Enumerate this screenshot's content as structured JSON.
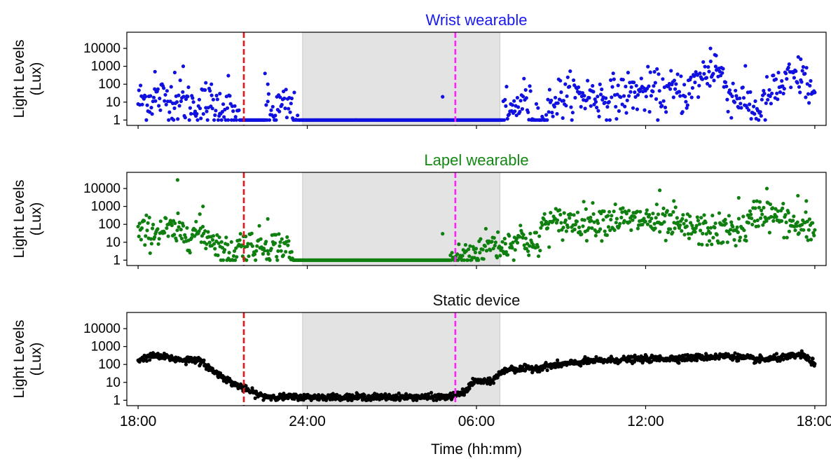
{
  "chart_data": {
    "type": "scatter",
    "xlabel": "Time (hh:mm)",
    "x_ticks": [
      "18:00",
      "24:00",
      "06:00",
      "12:00",
      "18:00"
    ],
    "x_tick_hours": [
      0,
      6,
      12,
      18,
      24
    ],
    "x_range_hours_from_18_00": [
      -0.4,
      24.4
    ],
    "shaded_period": {
      "start": "23:50",
      "end": "06:50",
      "color": "#e3e3e3"
    },
    "vlines": [
      {
        "time": "21:45",
        "color": "#e8151a",
        "style": "dashed"
      },
      {
        "time": "05:15",
        "color": "#ff22ff",
        "style": "dashed"
      }
    ],
    "y_scale": "log",
    "ylim": [
      0.5,
      80000
    ],
    "y_ticks": [
      1,
      10,
      100,
      1000,
      10000
    ],
    "y_tick_labels": [
      "1",
      "10",
      "100",
      "1000",
      "10000"
    ],
    "panels": [
      {
        "title": "Wrist wearable",
        "title_color": "#1a1aef",
        "ylabel_line1": "Light Levels",
        "ylabel_line2": "(Lux)",
        "point_color": "#1010e0",
        "series": {
          "profile": [
            [
              0,
              12
            ],
            [
              0.5,
              15
            ],
            [
              1,
              18
            ],
            [
              1.5,
              10
            ],
            [
              2,
              7
            ],
            [
              2.5,
              6
            ],
            [
              3,
              5
            ],
            [
              3.3,
              2.5
            ],
            [
              3.6,
              1
            ],
            [
              4.5,
              1
            ],
            [
              5,
              5
            ],
            [
              5.4,
              5
            ],
            [
              5.7,
              1
            ],
            [
              12.9,
              1
            ],
            [
              13.3,
              3
            ],
            [
              13.7,
              20
            ],
            [
              14,
              2
            ],
            [
              14.4,
              1
            ],
            [
              14.7,
              12
            ],
            [
              15,
              20
            ],
            [
              16,
              25
            ],
            [
              16.5,
              15
            ],
            [
              17,
              22
            ],
            [
              17.5,
              35
            ],
            [
              18,
              40
            ],
            [
              18.5,
              30
            ],
            [
              19,
              40
            ],
            [
              19.5,
              35
            ],
            [
              20,
              300
            ],
            [
              20.5,
              900
            ],
            [
              20.8,
              150
            ],
            [
              21,
              25
            ],
            [
              21.3,
              20
            ],
            [
              21.6,
              10
            ],
            [
              22,
              2.5
            ],
            [
              22.4,
              25
            ],
            [
              23,
              130
            ],
            [
              23.5,
              280
            ],
            [
              23.8,
              70
            ],
            [
              24,
              18
            ]
          ],
          "spread": 0.6,
          "count": 820,
          "outliers": [
            [
              0.6,
              500
            ],
            [
              1.3,
              450
            ],
            [
              1.6,
              1000
            ],
            [
              2.4,
              120
            ],
            [
              2.6,
              100
            ],
            [
              2.9,
              30
            ],
            [
              3.2,
              300
            ],
            [
              4.5,
              400
            ],
            [
              4.6,
              100
            ],
            [
              10.8,
              20
            ],
            [
              20.3,
              10000
            ],
            [
              20.5,
              4000
            ],
            [
              23.5,
              2500
            ]
          ]
        }
      },
      {
        "title": "Lapel wearable",
        "title_color": "#138813",
        "ylabel_line1": "Light Levels",
        "ylabel_line2": "(Lux)",
        "point_color": "#0f7f0f",
        "series": {
          "profile": [
            [
              0,
              30
            ],
            [
              0.5,
              40
            ],
            [
              1,
              50
            ],
            [
              1.5,
              30
            ],
            [
              2,
              40
            ],
            [
              2.5,
              20
            ],
            [
              2.7,
              15
            ],
            [
              3,
              3
            ],
            [
              3.3,
              2
            ],
            [
              3.6,
              8
            ],
            [
              4,
              7
            ],
            [
              4.5,
              7
            ],
            [
              5,
              6
            ],
            [
              5.2,
              8
            ],
            [
              5.4,
              2
            ],
            [
              5.5,
              1
            ],
            [
              11,
              1
            ],
            [
              11.3,
              1.2
            ],
            [
              11.7,
              2
            ],
            [
              12,
              3
            ],
            [
              12.3,
              6
            ],
            [
              12.6,
              8
            ],
            [
              13,
              6
            ],
            [
              13.3,
              12
            ],
            [
              13.6,
              20
            ],
            [
              14,
              7
            ],
            [
              14.2,
              4
            ],
            [
              14.3,
              100
            ],
            [
              14.6,
              110
            ],
            [
              15,
              120
            ],
            [
              15.5,
              150
            ],
            [
              16,
              160
            ],
            [
              16.5,
              180
            ],
            [
              17,
              200
            ],
            [
              17.5,
              150
            ],
            [
              18,
              200
            ],
            [
              18.5,
              100
            ],
            [
              19,
              80
            ],
            [
              19.5,
              60
            ],
            [
              20,
              50
            ],
            [
              20.5,
              40
            ],
            [
              21,
              50
            ],
            [
              21.5,
              45
            ],
            [
              22,
              600
            ],
            [
              22.5,
              300
            ],
            [
              23,
              150
            ],
            [
              23.5,
              60
            ],
            [
              24,
              40
            ]
          ],
          "spread": 0.45,
          "count": 900,
          "outliers": [
            [
              1.4,
              30000
            ],
            [
              2.3,
              1000
            ],
            [
              4.6,
              200
            ],
            [
              10.8,
              30
            ],
            [
              18.5,
              8000
            ],
            [
              19,
              2000
            ],
            [
              21.3,
              3000
            ],
            [
              22.3,
              10000
            ],
            [
              23.4,
              4000
            ],
            [
              23.7,
              2000
            ]
          ]
        }
      },
      {
        "title": "Static device",
        "title_color": "#111111",
        "ylabel_line1": "Light Levels",
        "ylabel_line2": "(Lux)",
        "point_color": "#000000",
        "series": {
          "profile": [
            [
              0,
              180
            ],
            [
              0.5,
              300
            ],
            [
              1,
              250
            ],
            [
              1.5,
              180
            ],
            [
              2,
              200
            ],
            [
              2.3,
              120
            ],
            [
              2.7,
              40
            ],
            [
              3,
              20
            ],
            [
              3.3,
              10
            ],
            [
              3.6,
              6
            ],
            [
              4,
              3
            ],
            [
              4.4,
              1.7
            ],
            [
              5,
              1.5
            ],
            [
              8,
              1.5
            ],
            [
              10,
              1.5
            ],
            [
              11,
              1.5
            ],
            [
              11.3,
              2
            ],
            [
              11.6,
              3
            ],
            [
              11.8,
              8
            ],
            [
              12,
              12
            ],
            [
              12.5,
              10
            ],
            [
              12.8,
              30
            ],
            [
              13.2,
              60
            ],
            [
              13.5,
              55
            ],
            [
              14,
              60
            ],
            [
              14.5,
              80
            ],
            [
              15,
              100
            ],
            [
              16,
              150
            ],
            [
              17,
              180
            ],
            [
              18,
              200
            ],
            [
              19,
              220
            ],
            [
              20,
              250
            ],
            [
              21,
              300
            ],
            [
              22,
              180
            ],
            [
              23,
              250
            ],
            [
              23.5,
              350
            ],
            [
              24,
              120
            ]
          ],
          "spread": 0.09,
          "count": 1400,
          "outliers": [
            [
              2.5,
              80
            ],
            [
              1.7,
              100
            ]
          ]
        }
      }
    ]
  }
}
